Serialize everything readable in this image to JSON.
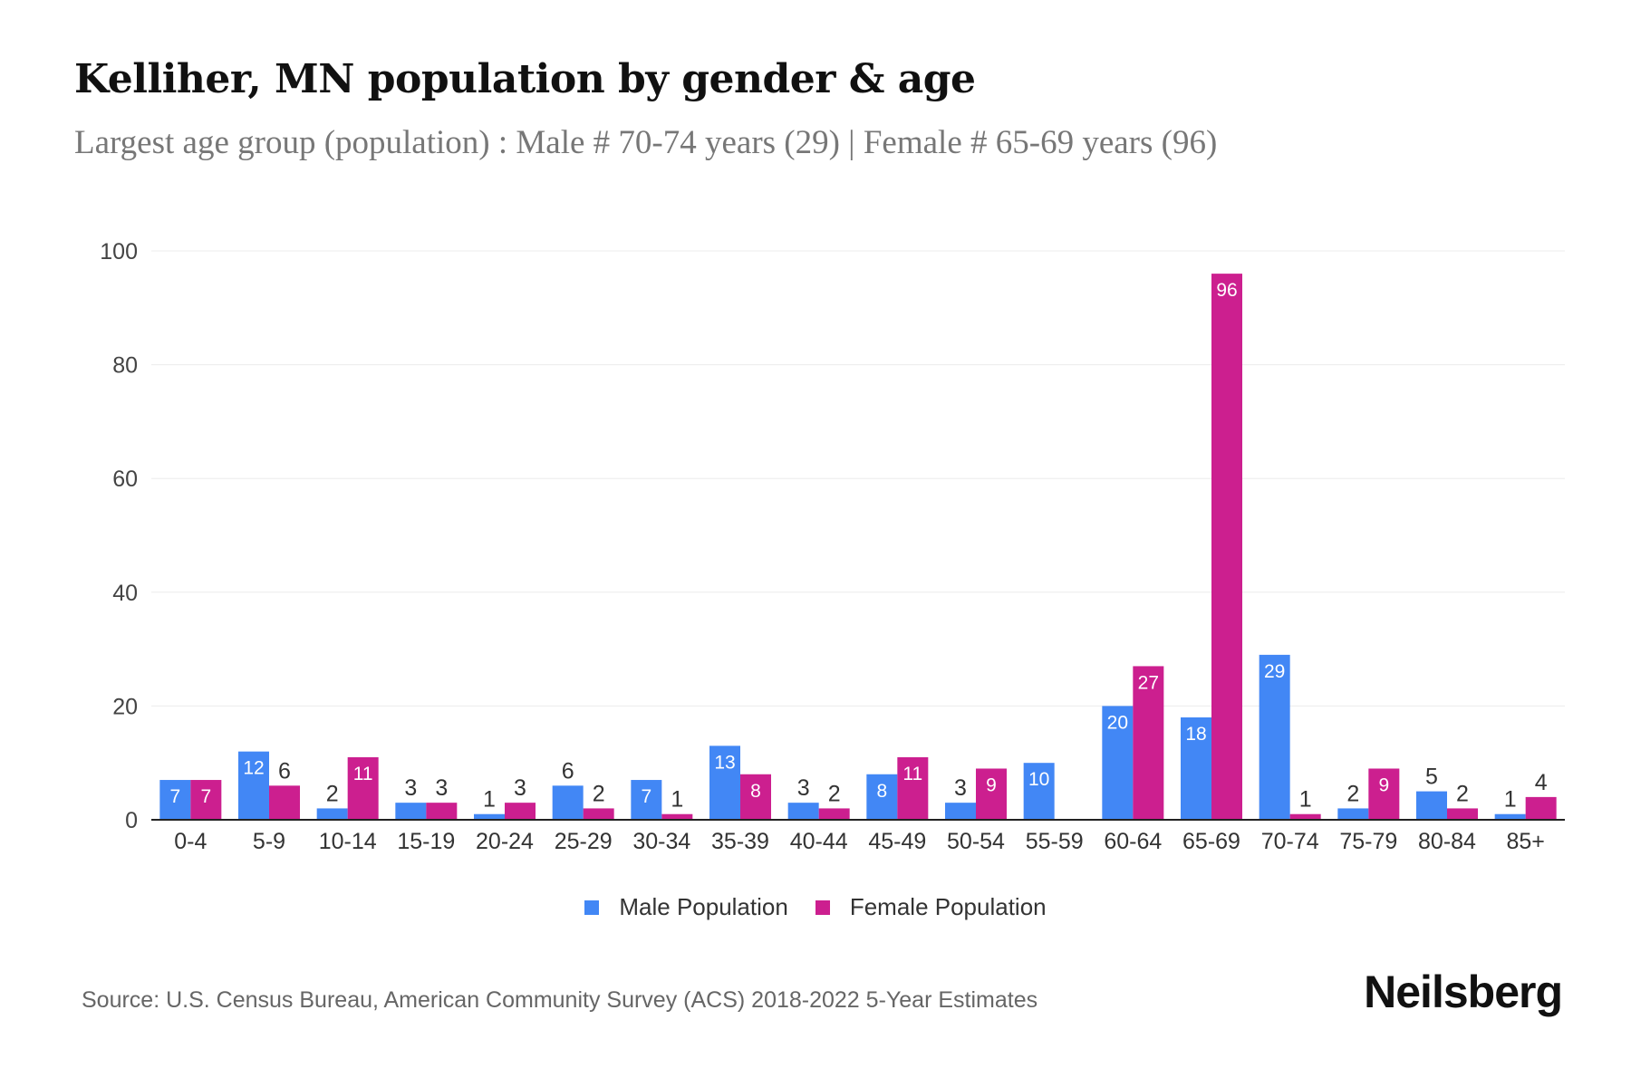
{
  "chart_data": {
    "type": "bar",
    "title": "Kelliher, MN population by gender & age",
    "subtitle": "Largest age group (population) : Male # 70-74 years (29) | Female # 65-69 years (96)",
    "categories": [
      "0-4",
      "5-9",
      "10-14",
      "15-19",
      "20-24",
      "25-29",
      "30-34",
      "35-39",
      "40-44",
      "45-49",
      "50-54",
      "55-59",
      "60-64",
      "65-69",
      "70-74",
      "75-79",
      "80-84",
      "85+"
    ],
    "series": [
      {
        "name": "Male Population",
        "color": "#4287f5",
        "values": [
          7,
          12,
          2,
          3,
          1,
          6,
          7,
          13,
          3,
          8,
          3,
          10,
          20,
          18,
          29,
          2,
          5,
          1
        ]
      },
      {
        "name": "Female Population",
        "color": "#cc1f8f",
        "values": [
          7,
          6,
          11,
          3,
          3,
          2,
          1,
          8,
          2,
          11,
          9,
          0,
          27,
          96,
          1,
          9,
          2,
          4
        ]
      }
    ],
    "ylim": [
      0,
      100
    ],
    "yticks": [
      0,
      20,
      40,
      60,
      80,
      100
    ],
    "grid": true,
    "legend_position": "bottom",
    "xlabel": "",
    "ylabel": ""
  },
  "source": "Source: U.S. Census Bureau, American Community Survey (ACS) 2018-2022 5-Year Estimates",
  "logo": "Neilsberg"
}
